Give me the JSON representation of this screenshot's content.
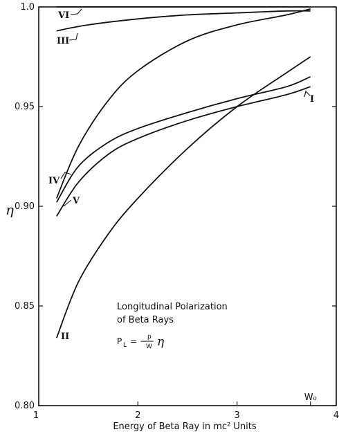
{
  "chart_data": {
    "type": "line",
    "xlabel": "Energy of Beta Ray in mc² Units",
    "ylabel": "η",
    "xlim": [
      1,
      4
    ],
    "ylim": [
      0.8,
      1.0
    ],
    "x_ticks": [
      1,
      2,
      3,
      4
    ],
    "x_tick_labels": [
      "1",
      "2",
      "3",
      "4"
    ],
    "x_special_tick": {
      "x": 3.74,
      "label": "W₀"
    },
    "y_ticks": [
      0.8,
      0.85,
      0.9,
      0.95,
      1.0
    ],
    "y_tick_labels": [
      "0.80",
      "0.85",
      "0.90",
      "0.95",
      "1.0"
    ],
    "grid": false,
    "annotation": {
      "lines": [
        "Longitudinal Polarization",
        "of Beta Rays"
      ],
      "formula": {
        "lhs": "P",
        "lhs_sub": "L",
        "equals": "= −",
        "num": "p",
        "den": "W",
        "symbol": "η"
      }
    },
    "series": [
      {
        "name": "VI",
        "x": [
          1.18,
          1.5,
          2.0,
          2.5,
          3.0,
          3.5,
          3.74
        ],
        "y": [
          1.0,
          1.0,
          1.0,
          1.0,
          1.0,
          1.0,
          1.0
        ]
      },
      {
        "name": "III",
        "x": [
          1.18,
          1.5,
          2.0,
          2.5,
          3.0,
          3.5,
          3.74
        ],
        "y": [
          0.988,
          0.991,
          0.994,
          0.996,
          0.997,
          0.998,
          0.998
        ]
      },
      {
        "name": "IV",
        "x": [
          1.18,
          1.4,
          1.7,
          2.0,
          2.5,
          3.0,
          3.5,
          3.74
        ],
        "y": [
          0.904,
          0.93,
          0.953,
          0.968,
          0.983,
          0.991,
          0.996,
          0.999
        ]
      },
      {
        "name": "I",
        "x": [
          1.18,
          1.4,
          1.7,
          2.0,
          2.5,
          3.0,
          3.5,
          3.74
        ],
        "y": [
          0.902,
          0.92,
          0.932,
          0.939,
          0.947,
          0.954,
          0.96,
          0.965
        ]
      },
      {
        "name": "V",
        "x": [
          1.18,
          1.4,
          1.7,
          2.0,
          2.5,
          3.0,
          3.5,
          3.74
        ],
        "y": [
          0.895,
          0.912,
          0.926,
          0.934,
          0.943,
          0.95,
          0.956,
          0.96
        ]
      },
      {
        "name": "II",
        "x": [
          1.18,
          1.4,
          1.7,
          2.0,
          2.5,
          3.0,
          3.5,
          3.74
        ],
        "y": [
          0.834,
          0.862,
          0.886,
          0.904,
          0.929,
          0.95,
          0.967,
          0.975
        ]
      }
    ]
  }
}
